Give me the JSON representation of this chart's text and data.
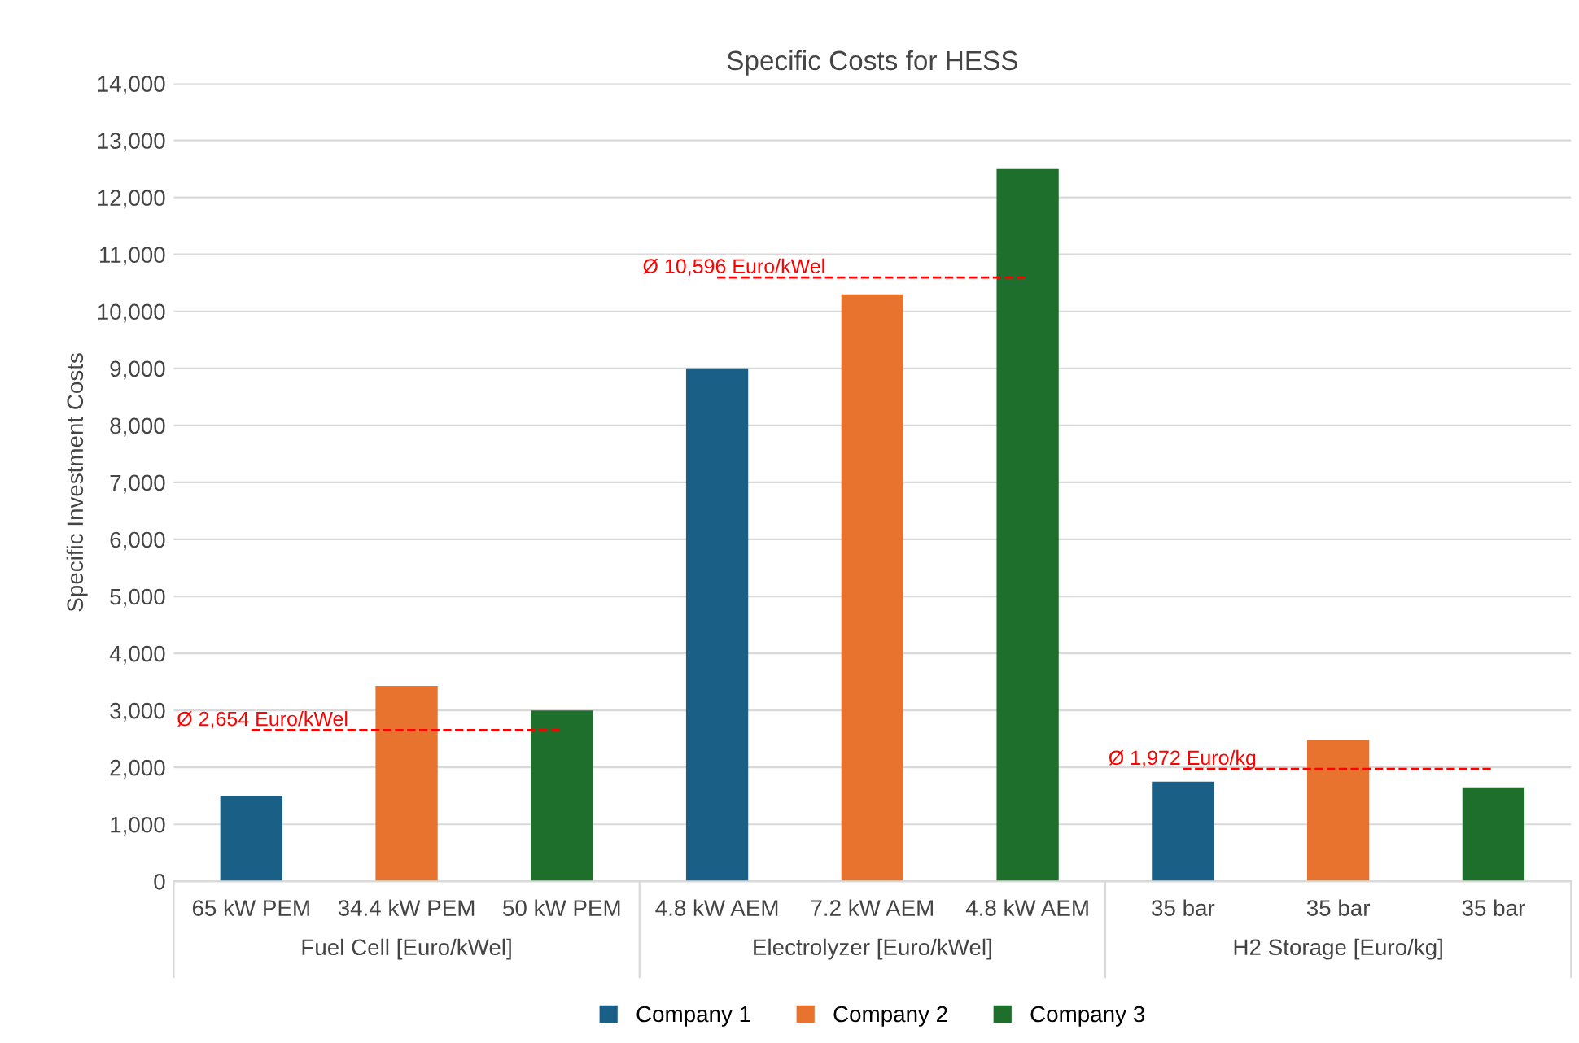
{
  "chart_data": {
    "type": "bar",
    "title": "Specific Costs for HESS",
    "ylabel": "Specific Investment Costs",
    "categories": [
      "65 kW PEM",
      "34.4 kW PEM",
      "50 kW PEM",
      "4.8 kW AEM",
      "7.2 kW AEM",
      "4.8 kW AEM",
      "35 bar",
      "35 bar",
      "35 bar"
    ],
    "series": [
      {
        "name": "Company 1",
        "color": "#1a5f85",
        "values": [
          1500,
          null,
          null,
          9000,
          null,
          null,
          1750,
          null,
          null
        ]
      },
      {
        "name": "Company 2",
        "color": "#e8732f",
        "values": [
          null,
          3430,
          null,
          null,
          10300,
          null,
          null,
          2480,
          null
        ]
      },
      {
        "name": "Company 3",
        "color": "#1e6e2c",
        "values": [
          null,
          null,
          3000,
          null,
          null,
          12500,
          null,
          null,
          1650
        ]
      },
      {
        "name": "Ø 2,654 Euro/kWel",
        "type": "line",
        "line_style": "dashed",
        "color": "#ff0000",
        "values": [
          2654,
          2654,
          2654,
          null,
          null,
          null,
          null,
          null,
          null
        ]
      },
      {
        "name": "Ø 10,596 Euro/kWel",
        "type": "line",
        "line_style": "dashed",
        "color": "#ff0000",
        "values": [
          null,
          null,
          null,
          10596,
          10596,
          10596,
          null,
          null,
          null
        ]
      },
      {
        "name": "Ø 1,972 Euro/kg",
        "type": "line",
        "line_style": "dashed",
        "color": "#ff0000",
        "values": [
          null,
          null,
          null,
          null,
          null,
          null,
          1972,
          1972,
          1972
        ]
      }
    ],
    "annotations": [
      "Fuel Cell [Euro/kWel]",
      "Electrolyzer [Euro/kWel]",
      "H2 Storage [Euro/kg]"
    ],
    "ylim": [
      0,
      14000
    ],
    "yticks": [
      0,
      {
        "value": 1000,
        "label": "1,000"
      },
      {
        "value": 2000,
        "label": "2,000"
      },
      {
        "value": 3000,
        "label": "3,000"
      },
      {
        "value": 4000,
        "label": "4,000"
      },
      {
        "value": 5000,
        "label": "5,000"
      },
      {
        "value": 6000,
        "label": "6,000"
      },
      {
        "value": 7000,
        "label": "7,000"
      },
      {
        "value": 8000,
        "label": "8,000"
      },
      {
        "value": 9000,
        "label": "9,000"
      },
      {
        "value": 10000,
        "label": "10,000"
      },
      {
        "value": 11000,
        "label": "11,000"
      },
      {
        "value": 12000,
        "label": "12,000"
      },
      {
        "value": 13000,
        "label": "13,000"
      },
      {
        "value": 14000,
        "label": "14,000"
      }
    ],
    "grid": "y",
    "legend": "bottom"
  }
}
